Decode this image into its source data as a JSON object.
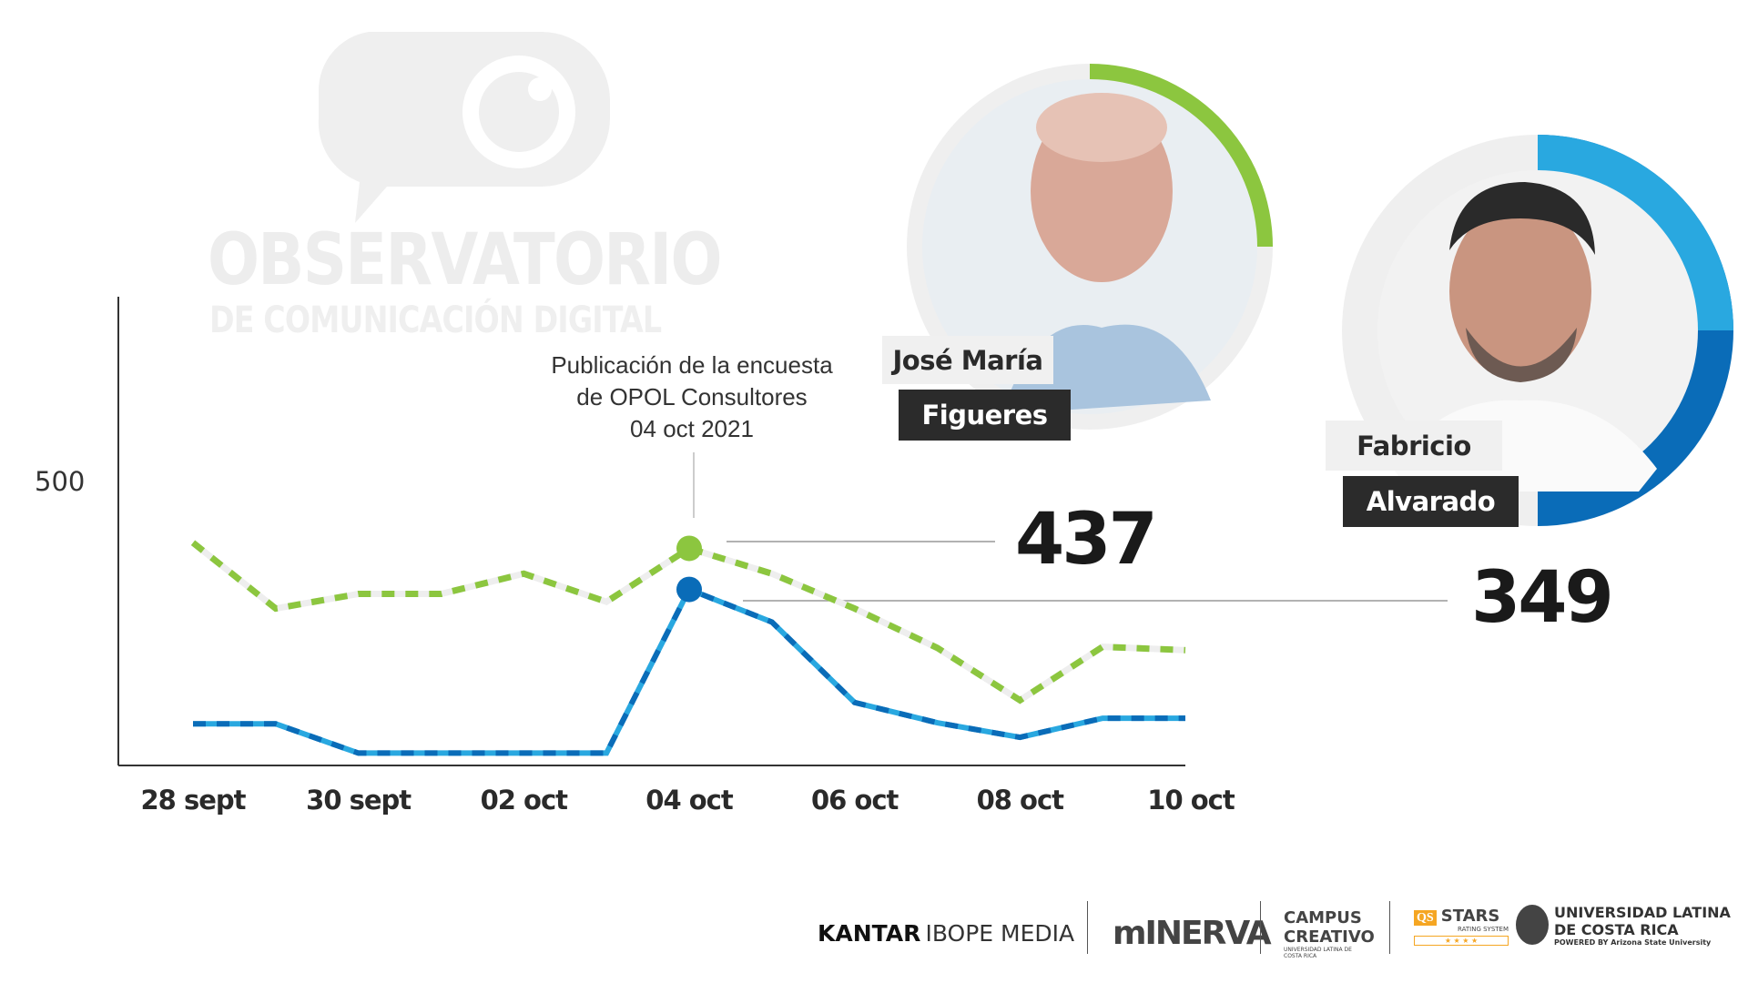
{
  "watermark": {
    "title": "OBSERVATORIO",
    "subtitle": "DE COMUNICACIÓN DIGITAL"
  },
  "annotation": {
    "line1": "Publicación de la encuesta",
    "line2": "de OPOL Consultores",
    "line3": "04 oct 2021"
  },
  "candidates": [
    {
      "first": "José María",
      "last": "Figueres",
      "value_label": "437",
      "color": "#8cc63f",
      "ring_fraction": 0.25
    },
    {
      "first": "Fabricio",
      "last": "Alvarado",
      "value_label": "349",
      "color": "#0a6cb8",
      "color_light": "#29a8e0",
      "ring_fraction": 0.5
    }
  ],
  "chart_data": {
    "type": "line",
    "title": "",
    "xlabel": "",
    "ylabel": "",
    "ylim": [
      0,
      500
    ],
    "y_ticks": [
      "500"
    ],
    "x": [
      "28 sept",
      "29 sept",
      "30 sept",
      "01 oct",
      "02 oct",
      "03 oct",
      "04 oct",
      "05 oct",
      "06 oct",
      "07 oct",
      "08 oct",
      "09 oct",
      "10 oct"
    ],
    "x_tick_labels": [
      "28 sept",
      "30 sept",
      "02 oct",
      "04 oct",
      "06 oct",
      "08 oct",
      "10 oct"
    ],
    "series": [
      {
        "name": "José María Figueres",
        "color": "#8cc63f",
        "style": "dashed",
        "values": [
          396,
          279,
          305,
          305,
          341,
          291,
          386,
          341,
          279,
          209,
          116,
          211,
          205
        ]
      },
      {
        "name": "Fabricio Alvarado",
        "color": "#0a6cb8",
        "color_light": "#29a8e0",
        "style": "dashed",
        "values": [
          74,
          74,
          22,
          22,
          22,
          22,
          313,
          255,
          112,
          76,
          50,
          84,
          84
        ]
      }
    ],
    "highlight_index": 6,
    "annotations": [
      "437",
      "349"
    ]
  },
  "footer": {
    "kantar_bold": "KANTAR",
    "kantar_light": "IBOPE MEDIA",
    "minerva": "mINERVA",
    "campus1": "CAMPUS",
    "campus2": "CREATIVO",
    "campus3": "UNIVERSIDAD LATINA DE COSTA RICA",
    "qs": "QS",
    "stars": "STARS",
    "rating": "RATING SYSTEM",
    "ulatina1": "UNIVERSIDAD LATINA",
    "ulatina2": "DE COSTA RICA",
    "powered": "POWERED BY Arizona State University"
  }
}
